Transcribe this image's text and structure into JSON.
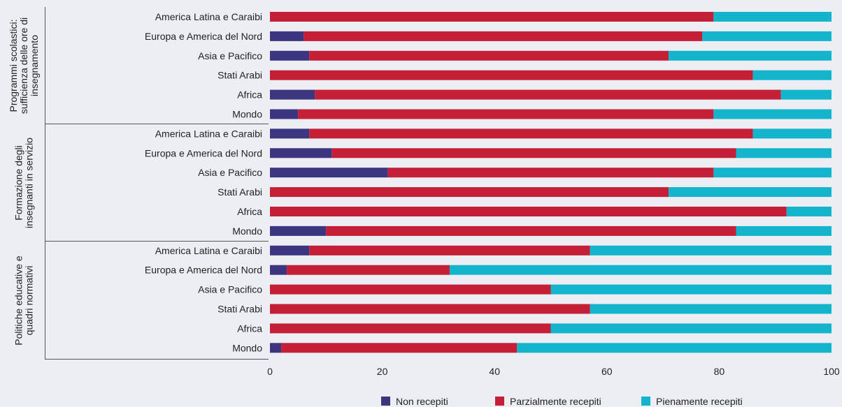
{
  "chart_data": {
    "type": "bar",
    "stacked": true,
    "orientation": "horizontal",
    "series": [
      {
        "name": "Non recepiti",
        "color": "#3c3580",
        "values": [
          0,
          6,
          7,
          0,
          8,
          5,
          7,
          11,
          21,
          0,
          0,
          10,
          7,
          3,
          0,
          0,
          0,
          2
        ]
      },
      {
        "name": "Parzialmente recepiti",
        "color": "#c41f36",
        "values": [
          79,
          71,
          64,
          86,
          83,
          74,
          79,
          72,
          58,
          71,
          92,
          73,
          50,
          29,
          50,
          57,
          50,
          42
        ]
      },
      {
        "name": "Pienamente recepiti",
        "color": "#12b5cc",
        "values": [
          21,
          23,
          29,
          14,
          9,
          21,
          14,
          17,
          21,
          29,
          8,
          17,
          43,
          68,
          50,
          43,
          50,
          56
        ]
      }
    ],
    "groups": [
      {
        "label": "Programmi scolastici: sufficienza delle ore di insegnamento",
        "label_lines": [
          "Programmi scolastici:",
          "sufficienza delle ore di",
          "insegnamento"
        ],
        "categories": [
          "America Latina e Caraibi",
          "Europa e America del Nord",
          "Asia e Pacifico",
          "Stati Arabi",
          "Africa",
          "Mondo"
        ]
      },
      {
        "label": "Formazione degli insegnanti in servizio",
        "label_lines": [
          "Formazione degli",
          "insegnanti in servizio"
        ],
        "categories": [
          "America Latina e Caraibi",
          "Europa e America del Nord",
          "Asia e Pacifico",
          "Stati Arabi",
          "Africa",
          "Mondo"
        ]
      },
      {
        "label": "Politiche educative e quadri normativi",
        "label_lines": [
          "Politiche educative e",
          "quadri normativi"
        ],
        "categories": [
          "America Latina e Caraibi",
          "Europa e America del Nord",
          "Asia e Pacifico",
          "Stati Arabi",
          "Africa",
          "Mondo"
        ]
      }
    ],
    "xlim": [
      0,
      100
    ],
    "xticks": [
      0,
      20,
      40,
      60,
      80,
      100
    ],
    "xlabel": "",
    "ylabel": "",
    "title": "",
    "grid": false,
    "legend": {
      "placement": "bottom-right"
    }
  }
}
